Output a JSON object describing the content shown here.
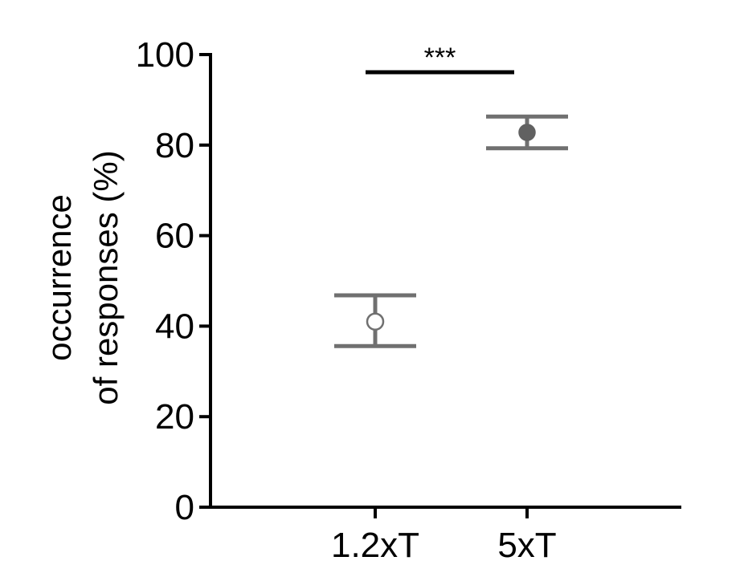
{
  "chart_data": {
    "type": "scatter",
    "ylabel_lines": [
      "occurrence",
      "of responses (%)"
    ],
    "ylim": [
      0,
      100
    ],
    "yticks": [
      0,
      20,
      40,
      60,
      80,
      100
    ],
    "categories": [
      "1.2xT",
      "5xT"
    ],
    "points": [
      {
        "category": "1.2xT",
        "value": 41,
        "err_low": 35.6,
        "err_high": 46.8,
        "marker": "open-circle"
      },
      {
        "category": "5xT",
        "value": 82.8,
        "err_low": 79.3,
        "err_high": 86.3,
        "marker": "filled-circle"
      }
    ],
    "significance": {
      "label": "***",
      "from": "1.2xT",
      "to": "5xT"
    },
    "grid": false,
    "colors": {
      "axis": "#000000",
      "errorbar": "#707070",
      "marker_fill": "#616161"
    }
  }
}
